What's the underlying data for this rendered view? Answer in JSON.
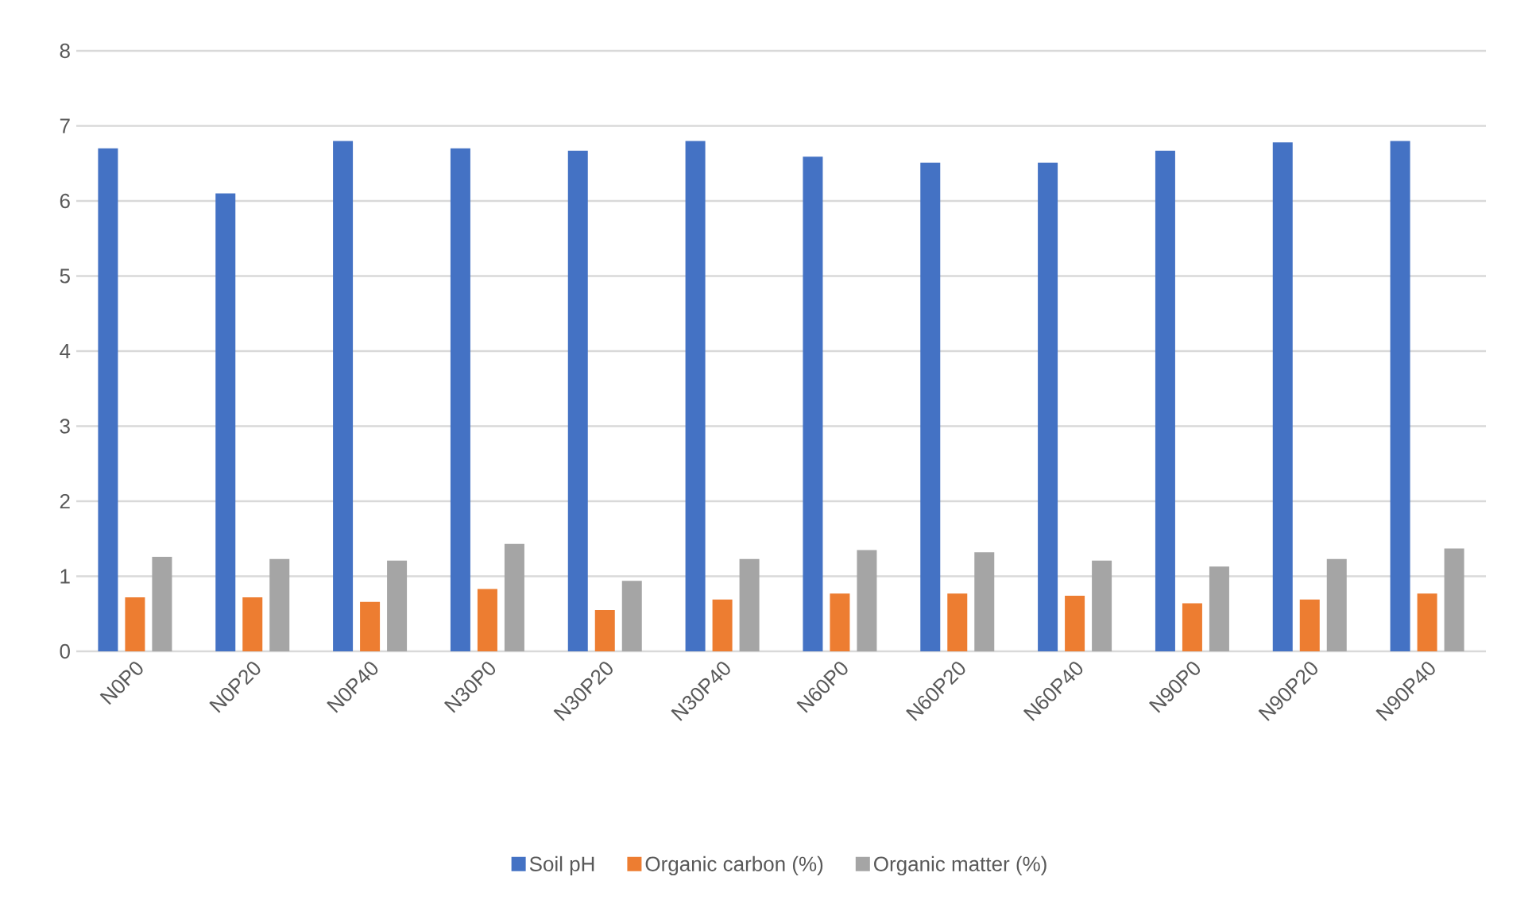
{
  "chart_data": {
    "type": "bar",
    "categories": [
      "N0P0",
      "N0P20",
      "N0P40",
      "N30P0",
      "N30P20",
      "N30P40",
      "N60P0",
      "N60P20",
      "N60P40",
      "N90P0",
      "N90P20",
      "N90P40"
    ],
    "series": [
      {
        "name": "Soil pH",
        "color": "#4472c4",
        "values": [
          6.7,
          6.1,
          6.8,
          6.7,
          6.67,
          6.8,
          6.59,
          6.51,
          6.51,
          6.67,
          6.78,
          6.8
        ]
      },
      {
        "name": "Organic carbon (%)",
        "color": "#ed7d31",
        "values": [
          0.72,
          0.72,
          0.66,
          0.83,
          0.55,
          0.69,
          0.77,
          0.77,
          0.74,
          0.64,
          0.69,
          0.77
        ]
      },
      {
        "name": "Organic matter (%)",
        "color": "#a5a5a5",
        "values": [
          1.26,
          1.23,
          1.21,
          1.43,
          0.94,
          1.23,
          1.35,
          1.32,
          1.21,
          1.13,
          1.23,
          1.37
        ]
      }
    ],
    "ylim": [
      0,
      8
    ],
    "yticks": [
      0,
      1,
      2,
      3,
      4,
      5,
      6,
      7,
      8
    ],
    "grid": "y",
    "legend": "bottom"
  }
}
